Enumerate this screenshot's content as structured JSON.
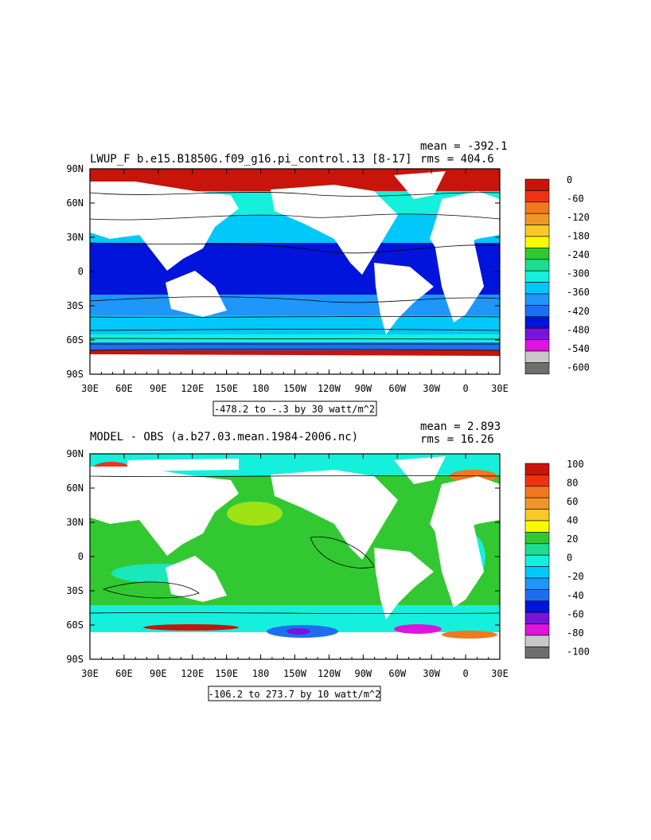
{
  "chart_data": [
    {
      "type": "heatmap",
      "title": "LWUP_F b.e15.B1850G.f09_g16.pi_control.13 [8-17]",
      "stats": {
        "mean": "mean = -392.1",
        "rms": "rms = 404.6"
      },
      "x_ticks": [
        "30E",
        "60E",
        "90E",
        "120E",
        "150E",
        "180",
        "150W",
        "120W",
        "90W",
        "60W",
        "30W",
        "0",
        "30E"
      ],
      "y_ticks": [
        "90N",
        "60N",
        "30N",
        "0",
        "30S",
        "60S",
        "90S"
      ],
      "xlim": [
        30,
        390
      ],
      "ylim": [
        -90,
        90
      ],
      "range_label": "-478.2 to -.3 by 30 watt/m^2",
      "legend_labels": [
        "0",
        "-60",
        "-120",
        "-180",
        "-240",
        "-300",
        "-360",
        "-420",
        "-480",
        "-540",
        "-600"
      ],
      "legend_colors": [
        "#c8140a",
        "#f03214",
        "#f0781e",
        "#f09628",
        "#fac828",
        "#fafa00",
        "#32c832",
        "#1edc8c",
        "#14f0dc",
        "#00c8fa",
        "#1e96fa",
        "#1e6ef0",
        "#0014dc",
        "#7814dc",
        "#dc14dc",
        "#c8c8c8",
        "#6e6e6e"
      ]
    },
    {
      "type": "heatmap",
      "title": "MODEL - OBS (a.b27.03.mean.1984-2006.nc)",
      "stats": {
        "mean": "mean = 2.893",
        "rms": "rms = 16.26"
      },
      "x_ticks": [
        "30E",
        "60E",
        "90E",
        "120E",
        "150E",
        "180",
        "150W",
        "120W",
        "90W",
        "60W",
        "30W",
        "0",
        "30E"
      ],
      "y_ticks": [
        "90N",
        "60N",
        "30N",
        "0",
        "30S",
        "60S",
        "90S"
      ],
      "xlim": [
        30,
        390
      ],
      "ylim": [
        -90,
        90
      ],
      "range_label": "-106.2 to 273.7 by 10 watt/m^2",
      "legend_labels": [
        "100",
        "80",
        "60",
        "40",
        "20",
        "0",
        "-20",
        "-40",
        "-60",
        "-80",
        "-100"
      ],
      "legend_colors": [
        "#c8140a",
        "#f03214",
        "#f0781e",
        "#f09628",
        "#fac828",
        "#fafa00",
        "#32c832",
        "#1edc8c",
        "#14f0dc",
        "#00c8fa",
        "#1e96fa",
        "#1e6ef0",
        "#0014dc",
        "#7814dc",
        "#dc14dc",
        "#c8c8c8",
        "#6e6e6e"
      ]
    }
  ]
}
